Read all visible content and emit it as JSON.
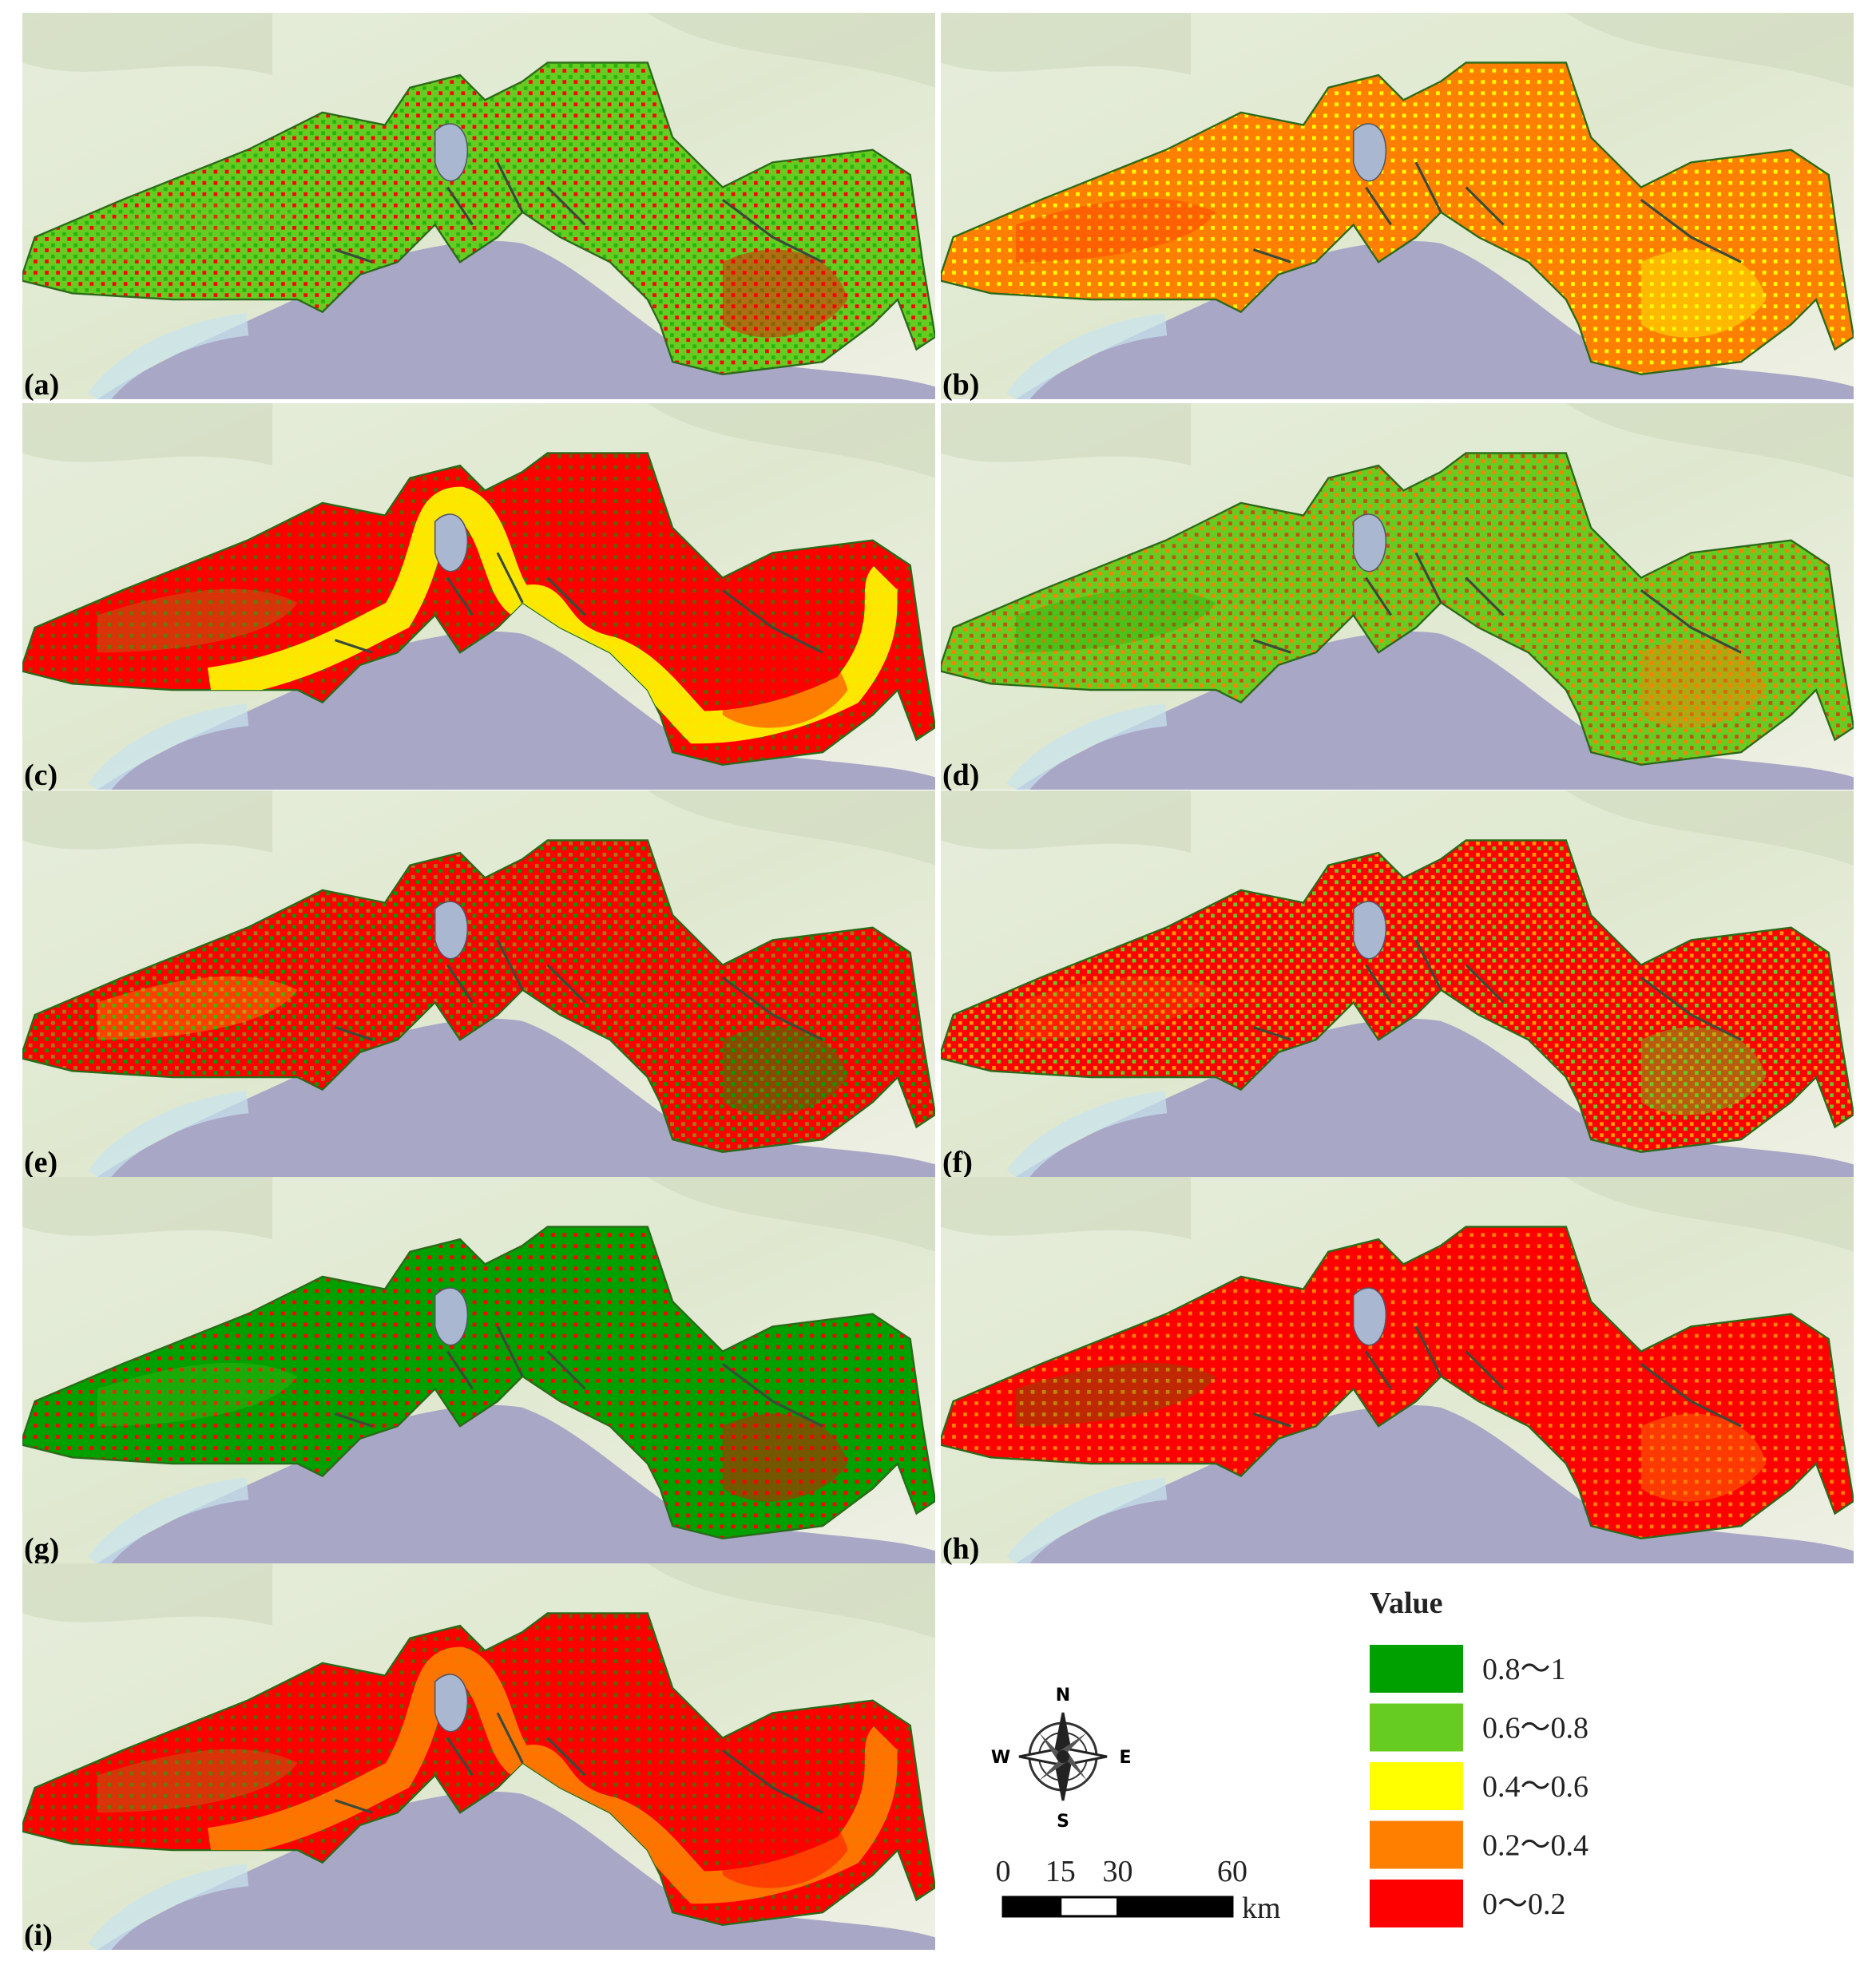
{
  "panels": [
    "(a)",
    "(b)",
    "(c)",
    "(d)",
    "(e)",
    "(f)",
    "(g)",
    "(h)",
    "(i)"
  ],
  "legend": {
    "title": "Value",
    "items": [
      {
        "label": "0.8～1",
        "color": "#00a000"
      },
      {
        "label": "0.6～0.8",
        "color": "#66cc22"
      },
      {
        "label": "0.4～0.6",
        "color": "#ffff00"
      },
      {
        "label": "0.2～0.4",
        "color": "#ff8000"
      },
      {
        "label": "0～0.2",
        "color": "#ff0000"
      }
    ]
  },
  "compass": {
    "n": "N",
    "s": "S",
    "w": "W",
    "e": "E"
  },
  "scale_bar": {
    "ticks": [
      0,
      15,
      30,
      60
    ],
    "unit": "km"
  }
}
